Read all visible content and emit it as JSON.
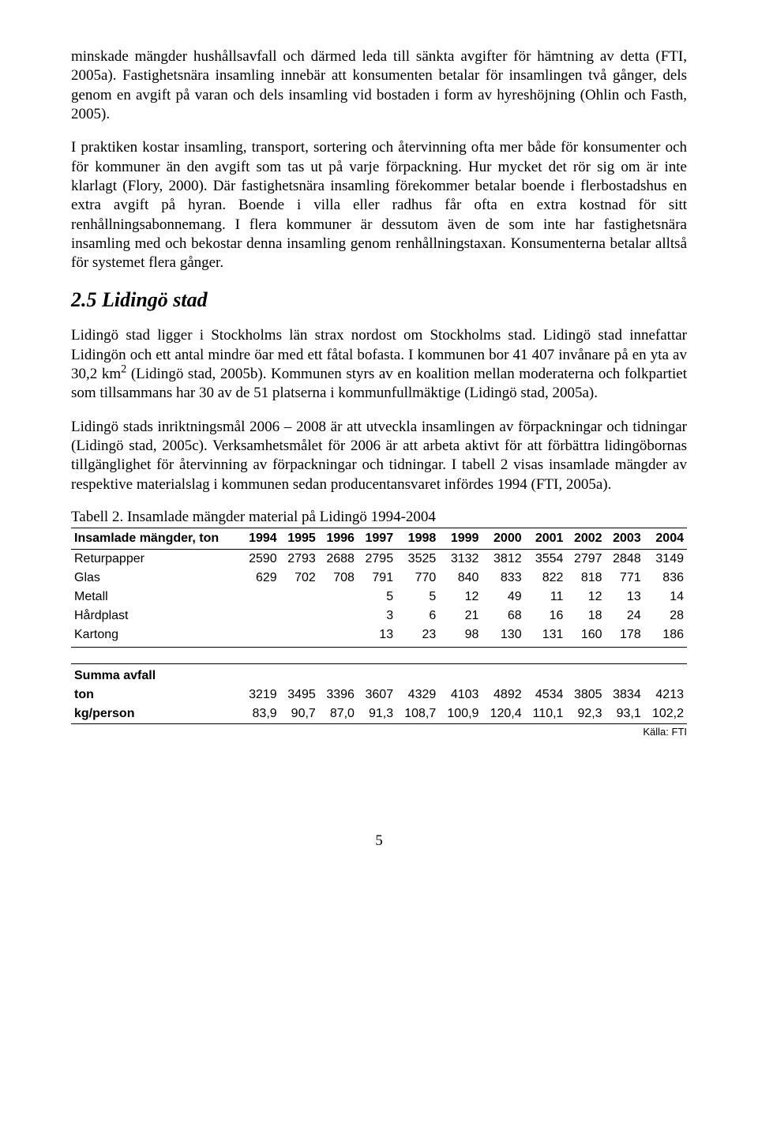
{
  "paragraphs": {
    "p1": "minskade mängder hushållsavfall och därmed leda till sänkta avgifter för hämtning av detta (FTI, 2005a). Fastighetsnära insamling innebär att konsumenten betalar för insamlingen två gånger, dels genom en avgift på varan och dels insamling vid bostaden i form av hyreshöjning (Ohlin och Fasth, 2005).",
    "p2": "I praktiken kostar insamling, transport, sortering och återvinning ofta mer både för konsumenter och för kommuner än den avgift som tas ut på varje förpackning. Hur mycket det rör sig om är inte klarlagt (Flory, 2000). Där fastighetsnära insamling förekommer betalar boende i flerbostadshus en extra avgift på hyran. Boende i villa eller radhus får ofta en extra kostnad för sitt renhållningsabonnemang. I flera kommuner är dessutom även de som inte har fastighetsnära insamling med och bekostar denna insamling genom renhållningstaxan. Konsumenterna betalar alltså för systemet flera gånger.",
    "p3a": "Lidingö stad ligger i Stockholms län strax nordost om Stockholms stad. Lidingö stad innefattar Lidingön och ett antal mindre öar med ett fåtal bofasta. I kommunen bor 41 407 invånare på en yta av 30,2 km",
    "p3b": " (Lidingö stad, 2005b). Kommunen styrs av en koalition mellan moderaterna och folkpartiet som tillsammans har 30 av de 51 platserna i kommunfullmäktige (Lidingö stad, 2005a).",
    "p4": "Lidingö stads inriktningsmål 2006 – 2008 är att utveckla insamlingen av förpackningar och tidningar (Lidingö stad, 2005c). Verksamhetsmålet för 2006 är att arbeta aktivt för att förbättra lidingöbornas tillgänglighet för återvinning av förpackningar och tidningar. I tabell 2 visas insamlade mängder av respektive materialslag i kommunen sedan producentansvaret infördes 1994 (FTI, 2005a)."
  },
  "heading": "2.5 Lidingö stad",
  "table_caption": "Tabell 2. Insamlade mängder material på Lidingö 1994-2004",
  "table": {
    "header_label": "Insamlade mängder, ton",
    "years": [
      "1994",
      "1995",
      "1996",
      "1997",
      "1998",
      "1999",
      "2000",
      "2001",
      "2002",
      "2003",
      "2004"
    ],
    "rows": [
      {
        "label": "Returpapper",
        "vals": [
          "2590",
          "2793",
          "2688",
          "2795",
          "3525",
          "3132",
          "3812",
          "3554",
          "2797",
          "2848",
          "3149"
        ]
      },
      {
        "label": "Glas",
        "vals": [
          "629",
          "702",
          "708",
          "791",
          "770",
          "840",
          "833",
          "822",
          "818",
          "771",
          "836"
        ]
      },
      {
        "label": "Metall",
        "vals": [
          "",
          "",
          "",
          "5",
          "5",
          "12",
          "49",
          "11",
          "12",
          "13",
          "14"
        ]
      },
      {
        "label": "Hårdplast",
        "vals": [
          "",
          "",
          "",
          "3",
          "6",
          "21",
          "68",
          "16",
          "18",
          "24",
          "28"
        ]
      },
      {
        "label": "Kartong",
        "vals": [
          "",
          "",
          "",
          "13",
          "23",
          "98",
          "130",
          "131",
          "160",
          "178",
          "186"
        ]
      }
    ],
    "summary_header": "Summa avfall",
    "summary_rows": [
      {
        "label": "ton",
        "vals": [
          "3219",
          "3495",
          "3396",
          "3607",
          "4329",
          "4103",
          "4892",
          "4534",
          "3805",
          "3834",
          "4213"
        ]
      },
      {
        "label": "kg/person",
        "vals": [
          "83,9",
          "90,7",
          "87,0",
          "91,3",
          "108,7",
          "100,9",
          "120,4",
          "110,1",
          "92,3",
          "93,1",
          "102,2"
        ]
      }
    ]
  },
  "source": "Källa: FTI",
  "page_number": "5",
  "exponent": "2"
}
